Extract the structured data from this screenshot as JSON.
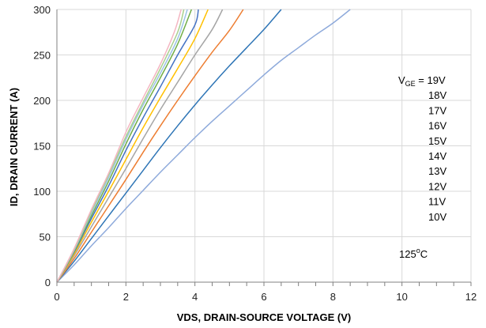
{
  "chart_data": {
    "type": "line",
    "title": "",
    "xlabel": "VDS, DRAIN-SOURCE VOLTAGE (V)",
    "ylabel": "ID, DRAIN CURRENT (A)",
    "xlim": [
      0,
      12
    ],
    "ylim": [
      0,
      300
    ],
    "x_ticks": [
      "0",
      "2",
      "4",
      "6",
      "8",
      "10",
      "12"
    ],
    "y_ticks": [
      "0",
      "50",
      "100",
      "150",
      "200",
      "250",
      "300"
    ],
    "grid": true,
    "legend": {
      "placement": "right",
      "prefix_main": "V",
      "prefix_sub": "GE",
      "prefix_eq": " = ",
      "entries": [
        "19V",
        "18V",
        "17V",
        "16V",
        "15V",
        "14V",
        "13V",
        "12V",
        "11V",
        "10V"
      ]
    },
    "temperature": {
      "value": "125",
      "sup": "o",
      "unit": "C"
    },
    "series": [
      {
        "name": "19V",
        "color": "#f4b6c2",
        "points": [
          [
            0,
            0
          ],
          [
            0.5,
            37
          ],
          [
            1,
            80
          ],
          [
            1.5,
            120
          ],
          [
            2,
            165
          ],
          [
            2.5,
            203
          ],
          [
            3,
            240
          ],
          [
            3.4,
            275
          ],
          [
            3.6,
            300
          ]
        ]
      },
      {
        "name": "18V",
        "color": "#a9d08e",
        "points": [
          [
            0,
            0
          ],
          [
            0.5,
            36
          ],
          [
            1,
            78
          ],
          [
            1.5,
            118
          ],
          [
            2,
            160
          ],
          [
            2.5,
            198
          ],
          [
            3,
            235
          ],
          [
            3.5,
            275
          ],
          [
            3.68,
            300
          ]
        ]
      },
      {
        "name": "17V",
        "color": "#9dc3e6",
        "points": [
          [
            0,
            0
          ],
          [
            0.5,
            35
          ],
          [
            1,
            76
          ],
          [
            1.5,
            115
          ],
          [
            2,
            157
          ],
          [
            2.5,
            195
          ],
          [
            3,
            230
          ],
          [
            3.5,
            268
          ],
          [
            3.78,
            300
          ]
        ]
      },
      {
        "name": "16V",
        "color": "#70ad47",
        "points": [
          [
            0,
            0
          ],
          [
            0.5,
            34
          ],
          [
            1,
            73
          ],
          [
            1.5,
            111
          ],
          [
            2,
            152
          ],
          [
            2.5,
            190
          ],
          [
            3,
            225
          ],
          [
            3.5,
            262
          ],
          [
            3.9,
            300
          ]
        ]
      },
      {
        "name": "15V",
        "color": "#4472c4",
        "points": [
          [
            0,
            0
          ],
          [
            0.5,
            33
          ],
          [
            1,
            70
          ],
          [
            1.5,
            106
          ],
          [
            2,
            145
          ],
          [
            2.5,
            181
          ],
          [
            3,
            215
          ],
          [
            3.5,
            250
          ],
          [
            4,
            283
          ],
          [
            4.1,
            300
          ]
        ]
      },
      {
        "name": "14V",
        "color": "#ffc000",
        "points": [
          [
            0,
            0
          ],
          [
            0.5,
            31
          ],
          [
            1,
            66
          ],
          [
            1.5,
            100
          ],
          [
            2,
            135
          ],
          [
            2.5,
            170
          ],
          [
            3,
            203
          ],
          [
            3.5,
            235
          ],
          [
            4,
            268
          ],
          [
            4.38,
            300
          ]
        ]
      },
      {
        "name": "13V",
        "color": "#a5a5a5",
        "points": [
          [
            0,
            0
          ],
          [
            0.5,
            29
          ],
          [
            1,
            61
          ],
          [
            1.5,
            93
          ],
          [
            2,
            125
          ],
          [
            2.5,
            158
          ],
          [
            3,
            190
          ],
          [
            3.5,
            220
          ],
          [
            4,
            250
          ],
          [
            4.5,
            278
          ],
          [
            4.8,
            300
          ]
        ]
      },
      {
        "name": "12V",
        "color": "#ed7d31",
        "points": [
          [
            0,
            0
          ],
          [
            0.5,
            26
          ],
          [
            1,
            55
          ],
          [
            1.5,
            84
          ],
          [
            2,
            113
          ],
          [
            2.5,
            143
          ],
          [
            3,
            172
          ],
          [
            3.5,
            200
          ],
          [
            4,
            227
          ],
          [
            4.5,
            253
          ],
          [
            5,
            277
          ],
          [
            5.4,
            300
          ]
        ]
      },
      {
        "name": "11V",
        "color": "#2e75b6",
        "points": [
          [
            0,
            0
          ],
          [
            0.5,
            23
          ],
          [
            1,
            48
          ],
          [
            1.5,
            73
          ],
          [
            2,
            98
          ],
          [
            2.5,
            123
          ],
          [
            3,
            148
          ],
          [
            3.5,
            172
          ],
          [
            4,
            195
          ],
          [
            4.5,
            217
          ],
          [
            5,
            238
          ],
          [
            5.5,
            258
          ],
          [
            6,
            278
          ],
          [
            6.5,
            300
          ]
        ]
      },
      {
        "name": "10V",
        "color": "#8eaadb",
        "points": [
          [
            0,
            0
          ],
          [
            0.5,
            19
          ],
          [
            1,
            40
          ],
          [
            1.5,
            60
          ],
          [
            2,
            81
          ],
          [
            2.5,
            101
          ],
          [
            3,
            121
          ],
          [
            3.5,
            140
          ],
          [
            4,
            159
          ],
          [
            4.5,
            177
          ],
          [
            5,
            194
          ],
          [
            5.5,
            211
          ],
          [
            6,
            228
          ],
          [
            6.5,
            244
          ],
          [
            7,
            258
          ],
          [
            7.5,
            272
          ],
          [
            8,
            285
          ],
          [
            8.5,
            300
          ]
        ]
      }
    ]
  }
}
